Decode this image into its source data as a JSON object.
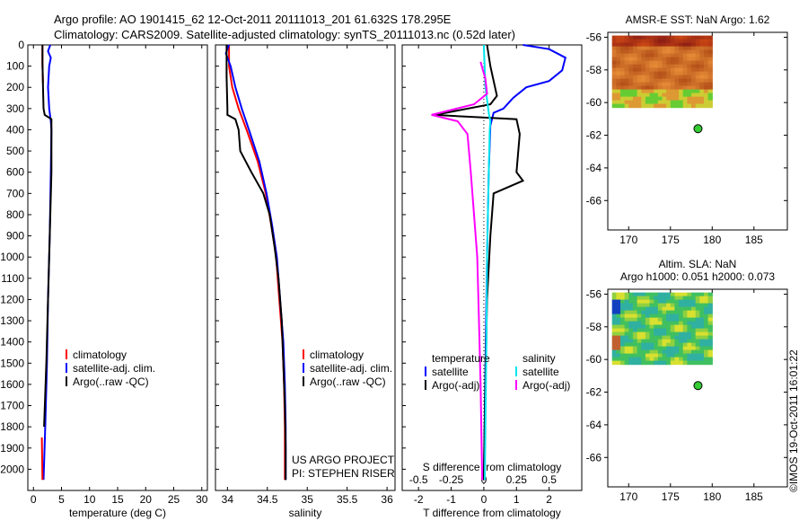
{
  "header": {
    "line1": "Argo profile: AO 1901415_62 12-Oct-2011 20111013_201 61.632S 178.295E",
    "line2": "Climatology: CARS2009. Satellite-adjusted climatology: synTS_20111013.nc (0.52d later)"
  },
  "colors": {
    "climatology": "#ff0000",
    "satellite": "#0000ff",
    "argo": "#000000",
    "salinity_satellite": "#00e5ee",
    "salinity_argo": "#ff00ff",
    "float_marker": "#33cc33"
  },
  "chart_data": [
    {
      "type": "line",
      "panel": "temperature",
      "xlabel": "temperature (deg C)",
      "xlim": [
        -1,
        31
      ],
      "xticks": [
        0,
        5,
        10,
        15,
        20,
        25,
        30
      ],
      "ylim": [
        2100,
        0
      ],
      "yticks": [
        0,
        100,
        200,
        300,
        400,
        500,
        600,
        700,
        800,
        900,
        1000,
        1100,
        1200,
        1300,
        1400,
        1500,
        1600,
        1700,
        1800,
        1900,
        2000
      ],
      "legend": [
        "climatology",
        "satellite-adj. clim.",
        "Argo(..raw -QC)"
      ],
      "series": [
        {
          "name": "climatology",
          "points": [
            [
              1.6,
              0
            ],
            [
              1.6,
              100
            ],
            [
              1.7,
              180
            ]
          ]
        },
        {
          "name": "satellite-adj. clim.",
          "points": [
            [
              3.0,
              0
            ],
            [
              2.6,
              30
            ],
            [
              3.1,
              60
            ],
            [
              2.8,
              100
            ],
            [
              2.6,
              200
            ],
            [
              2.8,
              300
            ],
            [
              3.1,
              360
            ],
            [
              3.2,
              400
            ],
            [
              3.1,
              600
            ],
            [
              2.9,
              900
            ],
            [
              2.6,
              1200
            ],
            [
              2.4,
              1500
            ],
            [
              2.1,
              1800
            ],
            [
              1.8,
              2050
            ]
          ]
        },
        {
          "name": "Argo(..raw -QC)",
          "points": [
            [
              1.6,
              0
            ],
            [
              1.6,
              80
            ],
            [
              1.7,
              200
            ],
            [
              1.8,
              300
            ],
            [
              2.0,
              330
            ],
            [
              3.2,
              350
            ],
            [
              3.2,
              400
            ],
            [
              3.2,
              600
            ],
            [
              2.9,
              900
            ],
            [
              2.6,
              1200
            ],
            [
              2.3,
              1500
            ],
            [
              1.9,
              1800
            ]
          ]
        }
      ],
      "clim_deep": [
        [
          1.5,
          1850
        ],
        [
          1.6,
          2050
        ]
      ]
    },
    {
      "type": "line",
      "panel": "salinity",
      "xlabel": "salinity",
      "xlim": [
        33.85,
        36.1
      ],
      "xticks": [
        34,
        34.5,
        35,
        35.5,
        36
      ],
      "ylim": [
        2100,
        0
      ],
      "legend": [
        "climatology",
        "satellite-adj. clim.",
        "Argo(..raw -QC)"
      ],
      "annotations": [
        "US ARGO PROJECT",
        "PI: STEPHEN RISER"
      ],
      "series": [
        {
          "name": "climatology",
          "points": [
            [
              34.02,
              0
            ],
            [
              34.02,
              100
            ],
            [
              34.06,
              200
            ],
            [
              34.14,
              300
            ],
            [
              34.24,
              400
            ],
            [
              34.38,
              550
            ],
            [
              34.48,
              700
            ],
            [
              34.55,
              850
            ],
            [
              34.61,
              1000
            ],
            [
              34.65,
              1200
            ],
            [
              34.69,
              1400
            ],
            [
              34.71,
              1600
            ],
            [
              34.72,
              1800
            ],
            [
              34.72,
              2050
            ]
          ]
        },
        {
          "name": "satellite-adj. clim.",
          "points": [
            [
              34.02,
              0
            ],
            [
              33.98,
              40
            ],
            [
              34.04,
              100
            ],
            [
              34.1,
              200
            ],
            [
              34.18,
              300
            ],
            [
              34.27,
              400
            ],
            [
              34.4,
              550
            ],
            [
              34.49,
              700
            ],
            [
              34.56,
              850
            ],
            [
              34.62,
              1000
            ],
            [
              34.66,
              1200
            ],
            [
              34.7,
              1400
            ],
            [
              34.72,
              1600
            ],
            [
              34.73,
              1800
            ],
            [
              34.73,
              2050
            ]
          ]
        },
        {
          "name": "Argo(..raw -QC)",
          "points": [
            [
              33.99,
              0
            ],
            [
              33.99,
              150
            ],
            [
              34.0,
              300
            ],
            [
              34.0,
              330
            ],
            [
              34.1,
              350
            ],
            [
              34.14,
              400
            ],
            [
              34.16,
              500
            ],
            [
              34.3,
              600
            ],
            [
              34.45,
              700
            ],
            [
              34.53,
              800
            ],
            [
              34.59,
              950
            ],
            [
              34.64,
              1100
            ],
            [
              34.68,
              1300
            ],
            [
              34.7,
              1500
            ],
            [
              34.72,
              1700
            ],
            [
              34.73,
              1900
            ],
            [
              34.73,
              2050
            ]
          ]
        }
      ]
    },
    {
      "type": "line",
      "panel": "difference",
      "xlabel": "T difference from climatology",
      "xlabel_top": "S difference from climatology",
      "xlim": [
        -2.5,
        3
      ],
      "xticks": [
        -2,
        -1,
        0,
        1,
        2
      ],
      "top_ticks": [
        "-0.5",
        "-0.25",
        "0",
        "0.25",
        "0.5"
      ],
      "ylim": [
        2100,
        0
      ],
      "legend_temperature": [
        "temperature",
        "satellite",
        "Argo(-adj)"
      ],
      "legend_salinity": [
        "salinity",
        "satellite",
        "Argo(-adj)"
      ],
      "series": [
        {
          "name": "temperature satellite",
          "points": [
            [
              1.2,
              0
            ],
            [
              2.0,
              20
            ],
            [
              2.5,
              60
            ],
            [
              2.4,
              120
            ],
            [
              2.0,
              170
            ],
            [
              1.3,
              200
            ],
            [
              0.9,
              250
            ],
            [
              0.6,
              300
            ],
            [
              0.3,
              320
            ],
            [
              0.2,
              380
            ],
            [
              0.15,
              600
            ],
            [
              0.1,
              1000
            ],
            [
              0.05,
              1500
            ],
            [
              0.0,
              2050
            ]
          ]
        },
        {
          "name": "temperature Argo(-adj)",
          "points": [
            [
              0.1,
              0
            ],
            [
              0.2,
              100
            ],
            [
              0.4,
              240
            ],
            [
              0.2,
              280
            ],
            [
              -1.5,
              330
            ],
            [
              -0.3,
              340
            ],
            [
              1.0,
              350
            ],
            [
              1.1,
              420
            ],
            [
              1.0,
              600
            ],
            [
              1.2,
              640
            ],
            [
              0.3,
              700
            ],
            [
              0.2,
              900
            ],
            [
              0.1,
              1200
            ],
            [
              0.05,
              1600
            ],
            [
              0.0,
              2050
            ]
          ]
        },
        {
          "name": "salinity satellite",
          "points": [
            [
              0.0,
              0
            ],
            [
              0.05,
              200
            ],
            [
              0.15,
              320
            ],
            [
              0.2,
              360
            ],
            [
              0.18,
              400
            ],
            [
              0.15,
              600
            ],
            [
              0.1,
              1000
            ],
            [
              0.08,
              1400
            ],
            [
              0.05,
              1800
            ],
            [
              0.03,
              2050
            ]
          ]
        },
        {
          "name": "salinity Argo(-adj)",
          "points": [
            [
              -0.1,
              80
            ],
            [
              0.05,
              160
            ],
            [
              0.1,
              230
            ],
            [
              -0.3,
              280
            ],
            [
              -1.6,
              330
            ],
            [
              -0.8,
              360
            ],
            [
              -0.5,
              420
            ],
            [
              -0.4,
              600
            ],
            [
              -0.3,
              800
            ],
            [
              -0.2,
              1000
            ],
            [
              -0.15,
              1300
            ],
            [
              -0.1,
              1600
            ],
            [
              -0.05,
              2050
            ]
          ]
        }
      ]
    },
    {
      "type": "heatmap",
      "panel": "sst_map",
      "title": "AMSR-E SST: NaN Argo: 1.62",
      "xlim": [
        167.5,
        189
      ],
      "ylim": [
        -67.8,
        -55.7
      ],
      "xticks": [
        170,
        175,
        180,
        185
      ],
      "yticks": [
        -56,
        -58,
        -60,
        -62,
        -64,
        -66
      ],
      "float_position": {
        "lon": 178.3,
        "lat": -61.6
      }
    },
    {
      "type": "heatmap",
      "panel": "sla_map",
      "title": "Altim. SLA: NaN",
      "subtitle": "Argo h1000: 0.051 h2000: 0.073",
      "xlim": [
        167.5,
        189
      ],
      "ylim": [
        -67.8,
        -55.7
      ],
      "xticks": [
        170,
        175,
        180,
        185
      ],
      "yticks": [
        -56,
        -58,
        -60,
        -62,
        -64,
        -66
      ],
      "float_position": {
        "lon": 178.3,
        "lat": -61.6
      }
    }
  ],
  "footer": {
    "credit": "©IMOS 19-Oct-2011 16:01:22"
  }
}
